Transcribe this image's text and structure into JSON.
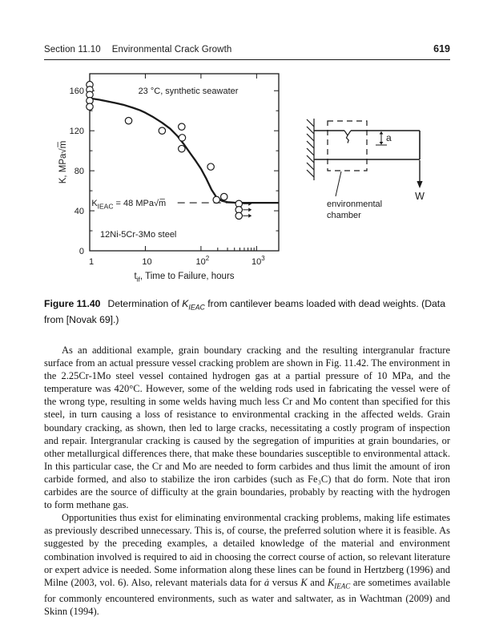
{
  "header": {
    "section": "Section 11.10",
    "title": "Environmental Crack Growth",
    "page": "619"
  },
  "chart_data": {
    "type": "scatter",
    "x_scale": "log",
    "xlim": [
      1,
      2500
    ],
    "ylim": [
      0,
      177
    ],
    "ylabel": "K, MPa√m̅",
    "xlabel": {
      "pre": "t",
      "sub": "if",
      "post": ", Time to Failure, hours"
    },
    "y_ticks": [
      0,
      40,
      80,
      120,
      160
    ],
    "y_minor_ticks": [
      20,
      60,
      100,
      140
    ],
    "x_ticks": [
      {
        "v": 1,
        "label": "1"
      },
      {
        "v": 10,
        "label": "10"
      },
      {
        "v": 100,
        "label": "10^2"
      },
      {
        "v": 1000,
        "label": "10^3"
      }
    ],
    "x_minor_ticks": [
      200,
      300,
      400,
      500,
      600,
      700,
      800,
      900
    ],
    "annotations": {
      "environment": "23 °C, synthetic seawater",
      "material": "12Ni-5Cr-3Mo steel",
      "threshold": {
        "pre": "K",
        "sub": "IEAC",
        "post": " = 48 MPa√m̅"
      }
    },
    "threshold_value": 48,
    "threshold_line_span": [
      38,
      2500
    ],
    "threshold_label_pos": [
      1.08,
      48
    ],
    "env_label_pos": [
      59,
      157
    ],
    "material_label_pos": [
      1.54,
      13.5
    ],
    "points": [
      [
        1,
        166
      ],
      [
        1,
        161
      ],
      [
        1,
        156
      ],
      [
        1,
        150
      ],
      [
        1,
        144
      ],
      [
        5,
        130
      ],
      [
        20,
        120
      ],
      [
        45,
        124
      ],
      [
        46,
        113
      ],
      [
        45,
        102
      ],
      [
        150,
        84
      ],
      [
        190,
        51
      ],
      [
        260,
        54
      ]
    ],
    "runout_points": [
      [
        480,
        47
      ],
      [
        480,
        41
      ],
      [
        480,
        35
      ]
    ],
    "curve": [
      [
        1,
        152.5
      ],
      [
        1.5,
        151
      ],
      [
        2,
        149.5
      ],
      [
        3,
        147.5
      ],
      [
        4,
        146
      ],
      [
        6,
        143
      ],
      [
        8,
        140.5
      ],
      [
        10,
        138
      ],
      [
        14,
        133.5
      ],
      [
        20,
        128
      ],
      [
        28,
        122
      ],
      [
        38,
        114.5
      ],
      [
        50,
        106
      ],
      [
        65,
        97
      ],
      [
        80,
        90
      ],
      [
        100,
        82
      ],
      [
        125,
        72
      ],
      [
        155,
        61
      ],
      [
        190,
        53.5
      ],
      [
        240,
        49.8
      ],
      [
        300,
        48.6
      ],
      [
        400,
        48.1
      ],
      [
        600,
        48
      ],
      [
        1000,
        48
      ],
      [
        2500,
        48
      ]
    ]
  },
  "diagram": {
    "depth_label": "a",
    "load_label": "W",
    "chamber_label_line1": "environmental",
    "chamber_label_line2": "chamber"
  },
  "caption": {
    "label": "Figure 11.40",
    "segments": [
      {
        "t": "Determination of "
      },
      {
        "t": "K",
        "f": "i"
      },
      {
        "t": "IEAC",
        "f": "isub"
      },
      {
        "t": " from cantilever beams loaded with dead weights. (Data from [Novak 69].)"
      }
    ]
  },
  "body": {
    "para1": "As an additional example, grain boundary cracking and the resulting intergranular fracture surface from an actual pressure vessel cracking problem are shown in Fig. 11.42. The environment in the 2.25Cr-1Mo steel vessel contained hydrogen gas at a partial pressure of 10 MPa, and the temperature was 420°C. However, some of the welding rods used in fabricating the vessel were of the wrong type, resulting in some welds having much less Cr and Mo content than specified for this steel, in turn causing a loss of resistance to environmental cracking in the affected welds. Grain boundary cracking, as shown, then led to large cracks, necessitating a costly program of inspection and repair. Intergranular cracking is caused by the segregation of impurities at grain boundaries, or other metallurgical differences there, that make these boundaries susceptible to environmental attack. In this particular case, the Cr and Mo are needed to form carbides and thus limit the amount of iron carbide formed, and also to stabilize the iron carbides (such as Fe₃C) that do form. Note that iron carbides are the source of difficulty at the grain boundaries, probably by reacting with the hydrogen to form methane gas.",
    "para2": [
      {
        "t": "Opportunities thus exist for eliminating environmental cracking problems, making life estimates as previously described unnecessary. This is, of course, the preferred solution where it is feasible. As suggested by the preceding examples, a detailed knowledge of the material and environment combination involved is required to aid in choosing the correct course of action, so relevant literature or expert advice is needed. Some information along these lines can be found in Hertzberg (1996) and Milne (2003, vol. 6). Also, relevant materials data for "
      },
      {
        "t": "ȧ",
        "f": "i"
      },
      {
        "t": " versus "
      },
      {
        "t": "K",
        "f": "i"
      },
      {
        "t": " and "
      },
      {
        "t": "K",
        "f": "i"
      },
      {
        "t": "IEAC",
        "f": "isub"
      },
      {
        "t": " are sometimes available for commonly encountered environments, such as water and saltwater, as in Wachtman (2009) and Skinn (1994)."
      }
    ]
  }
}
